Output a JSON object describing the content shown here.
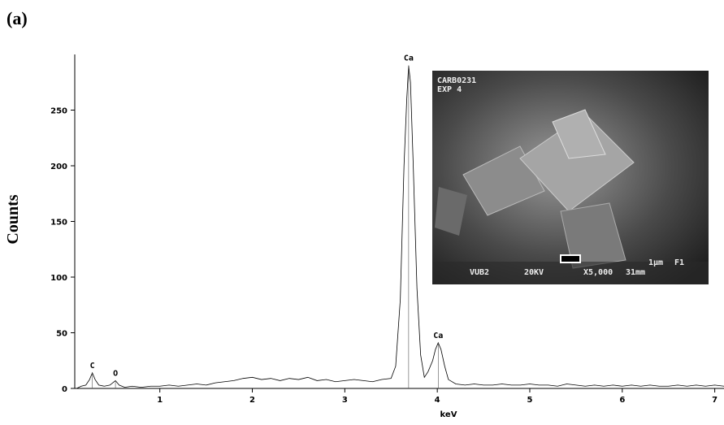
{
  "chart_data": {
    "type": "line",
    "panel_label": "(a)",
    "y_label": "Counts",
    "x_label": "keV",
    "x": [
      0.1,
      0.15,
      0.2,
      0.24,
      0.27,
      0.3,
      0.34,
      0.4,
      0.46,
      0.52,
      0.56,
      0.62,
      0.7,
      0.8,
      0.9,
      1.0,
      1.1,
      1.2,
      1.3,
      1.4,
      1.5,
      1.6,
      1.7,
      1.8,
      1.9,
      2.0,
      2.1,
      2.2,
      2.3,
      2.4,
      2.5,
      2.6,
      2.7,
      2.8,
      2.9,
      3.0,
      3.1,
      3.2,
      3.3,
      3.4,
      3.5,
      3.55,
      3.6,
      3.64,
      3.67,
      3.69,
      3.71,
      3.74,
      3.78,
      3.82,
      3.86,
      3.9,
      3.95,
      3.98,
      4.01,
      4.04,
      4.08,
      4.12,
      4.2,
      4.3,
      4.4,
      4.5,
      4.6,
      4.7,
      4.8,
      4.9,
      5.0,
      5.1,
      5.2,
      5.3,
      5.4,
      5.5,
      5.6,
      5.7,
      5.8,
      5.9,
      6.0,
      6.1,
      6.2,
      6.3,
      6.4,
      6.5,
      6.6,
      6.7,
      6.8,
      6.9,
      7.0,
      7.1
    ],
    "values": [
      0,
      2,
      3,
      8,
      14,
      8,
      3,
      2,
      3,
      7,
      3,
      1,
      2,
      1,
      2,
      2,
      3,
      2,
      3,
      4,
      3,
      5,
      6,
      7,
      9,
      10,
      8,
      9,
      7,
      9,
      8,
      10,
      7,
      8,
      6,
      7,
      8,
      7,
      6,
      8,
      9,
      20,
      80,
      200,
      260,
      290,
      275,
      200,
      90,
      30,
      10,
      15,
      25,
      35,
      41,
      35,
      20,
      8,
      4,
      3,
      4,
      3,
      3,
      4,
      3,
      3,
      4,
      3,
      3,
      2,
      4,
      3,
      2,
      3,
      2,
      3,
      2,
      3,
      2,
      3,
      2,
      2,
      3,
      2,
      3,
      2,
      3,
      2
    ],
    "color": "#000000",
    "xlim": [
      0.08,
      7.1
    ],
    "xticks": [
      1,
      2,
      3,
      4,
      5,
      6,
      7
    ],
    "ylim": [
      0,
      300
    ],
    "yticks": [
      0,
      50,
      100,
      150,
      200,
      250
    ],
    "annotations": [
      {
        "text": "C",
        "x": 0.27,
        "y": 14
      },
      {
        "text": "O",
        "x": 0.52,
        "y": 7
      },
      {
        "text": "Ca",
        "x": 3.69,
        "y": 290
      },
      {
        "text": "Ca",
        "x": 4.01,
        "y": 41
      }
    ]
  },
  "inset": {
    "labels": [
      "CARB0231",
      "EXP 4",
      "VUB2",
      "20KV",
      "X5,000",
      "31mm",
      "1µm",
      "F1"
    ]
  }
}
